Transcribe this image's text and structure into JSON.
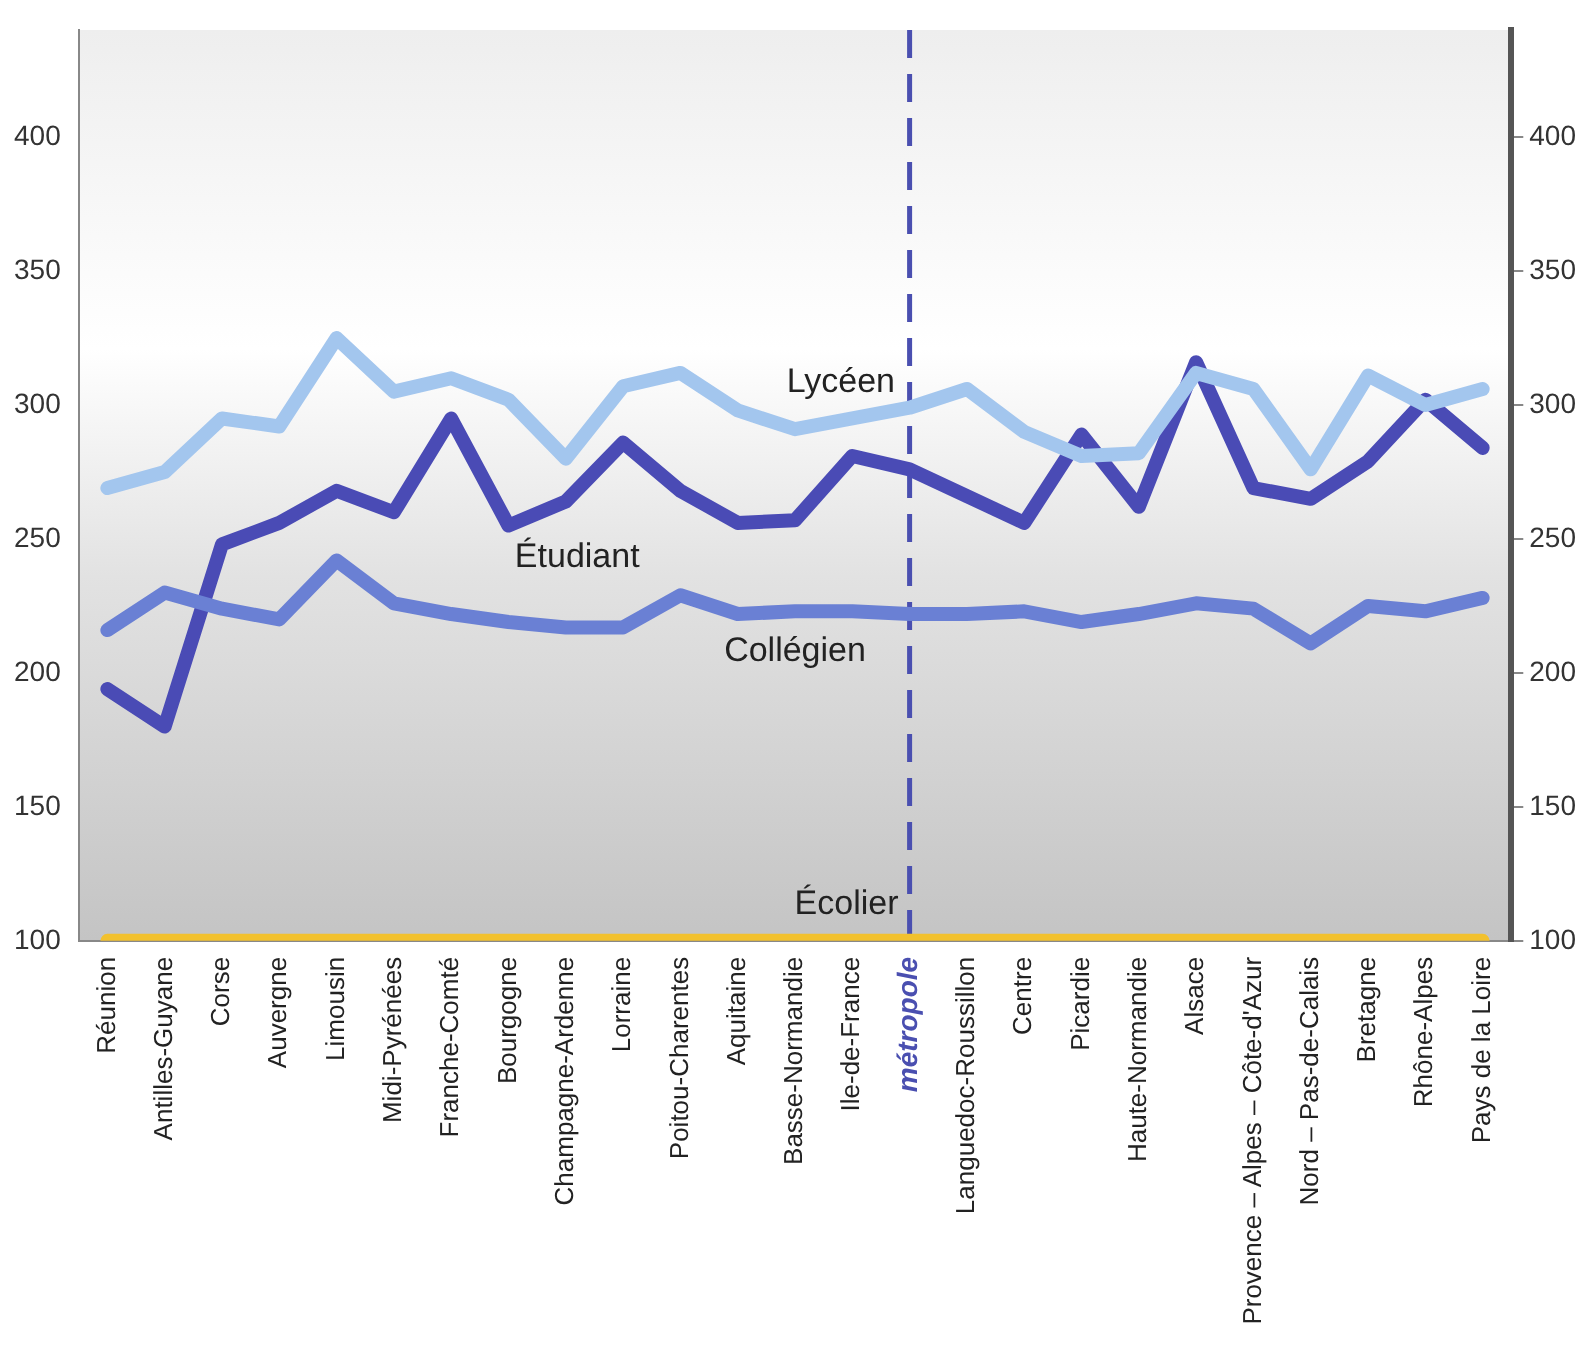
{
  "chart_data": {
    "type": "line",
    "categories": [
      "Réunion",
      "Antilles-Guyane",
      "Corse",
      "Auvergne",
      "Limousin",
      "Midi-Pyrénées",
      "Franche-Comté",
      "Bourgogne",
      "Champagne-Ardenne",
      "Lorraine",
      "Poitou-Charentes",
      "Aquitaine",
      "Basse-Normandie",
      "Ile-de-France",
      "métropole",
      "Languedoc-Roussillon",
      "Centre",
      "Picardie",
      "Haute-Normandie",
      "Alsace",
      "Provence – Alpes – Côte-d'Azur",
      "Nord – Pas-de-Calais",
      "Bretagne",
      "Rhône-Alpes",
      "Pays de la Loire"
    ],
    "series": [
      {
        "name": "Écolier",
        "color": "#f2c12e",
        "values": [
          100,
          100,
          100,
          100,
          100,
          100,
          100,
          100,
          100,
          100,
          100,
          100,
          100,
          100,
          100,
          100,
          100,
          100,
          100,
          100,
          100,
          100,
          100,
          100,
          100
        ]
      },
      {
        "name": "Collégien",
        "color": "#6a80d4",
        "values": [
          216,
          230,
          224,
          220,
          242,
          226,
          222,
          219,
          217,
          217,
          229,
          222,
          223,
          223,
          222,
          222,
          223,
          219,
          222,
          226,
          224,
          211,
          225,
          223,
          228
        ]
      },
      {
        "name": "Lycéen",
        "color": "#a3c6ee",
        "values": [
          269,
          275,
          295,
          292,
          325,
          305,
          310,
          302,
          280,
          307,
          312,
          298,
          291,
          295,
          299,
          306,
          290,
          281,
          282,
          312,
          306,
          276,
          311,
          300,
          306
        ]
      },
      {
        "name": "Étudiant",
        "color": "#4a4bb5",
        "values": [
          194,
          180,
          248,
          256,
          268,
          260,
          295,
          255,
          264,
          286,
          268,
          256,
          257,
          281,
          276,
          266,
          256,
          289,
          262,
          316,
          269,
          265,
          279,
          302,
          284
        ]
      }
    ],
    "ylim": [
      100,
      440
    ],
    "yticks": [
      100,
      150,
      200,
      250,
      300,
      350,
      400
    ],
    "y2lim": [
      100,
      440
    ],
    "y2ticks": [
      100,
      150,
      200,
      250,
      300,
      350,
      400
    ],
    "ref_lines": [
      {
        "axis": "x",
        "value": "métropole",
        "color": "#4a4fb0",
        "line_style": "dashed"
      }
    ],
    "grid": false,
    "legend": false,
    "marker": "none",
    "line_style": "solid"
  }
}
